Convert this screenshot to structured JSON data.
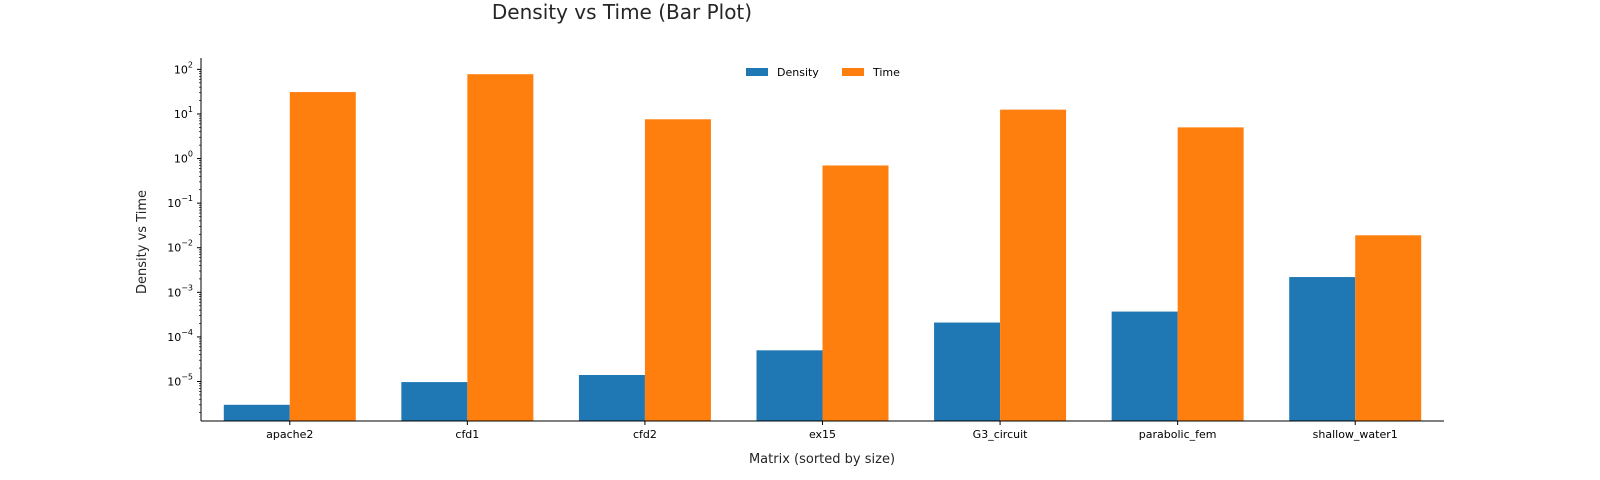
{
  "chart_data": {
    "type": "bar",
    "title": "Density vs Time (Bar Plot)",
    "xlabel": "Matrix (sorted by size)",
    "ylabel": "Density vs Time",
    "yscale": "log",
    "ylim": [
      1.3e-06,
      180
    ],
    "yticks": [
      {
        "value": 1e-05,
        "base": "10",
        "exp": "−5"
      },
      {
        "value": 0.0001,
        "base": "10",
        "exp": "−4"
      },
      {
        "value": 0.001,
        "base": "10",
        "exp": "−3"
      },
      {
        "value": 0.01,
        "base": "10",
        "exp": "−2"
      },
      {
        "value": 0.1,
        "base": "10",
        "exp": "−1"
      },
      {
        "value": 1,
        "base": "10",
        "exp": "0"
      },
      {
        "value": 10,
        "base": "10",
        "exp": "1"
      },
      {
        "value": 100,
        "base": "10",
        "exp": "2"
      }
    ],
    "categories": [
      "apache2",
      "cfd1",
      "cfd2",
      "ex15",
      "G3_circuit",
      "parabolic_fem",
      "shallow_water1"
    ],
    "series": [
      {
        "name": "Density",
        "color": "#1f77b4",
        "values": [
          3e-06,
          9.7e-06,
          1.4e-05,
          5e-05,
          0.00021,
          0.00037,
          0.0022
        ]
      },
      {
        "name": "Time",
        "color": "#ff7f0e",
        "values": [
          31,
          78,
          7.6,
          0.7,
          12.5,
          5.0,
          0.019
        ]
      }
    ],
    "legend_position": "top-center",
    "grid": false
  }
}
